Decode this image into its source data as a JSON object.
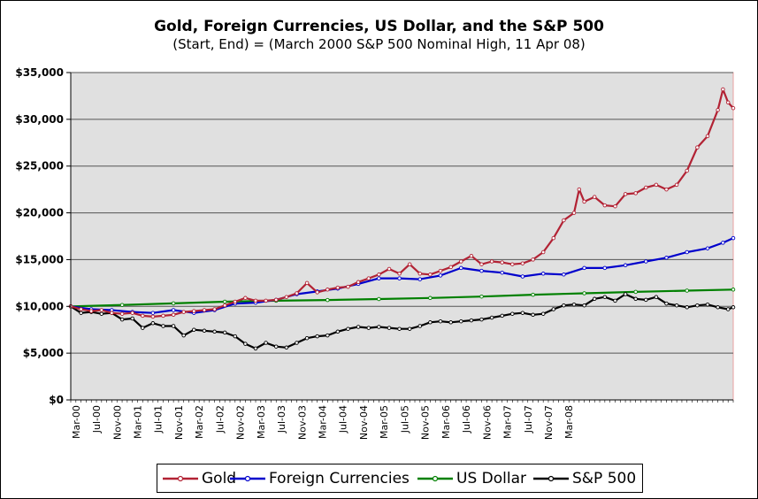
{
  "chart_data": {
    "type": "line",
    "title": "Gold, Foreign Currencies, US Dollar, and the S&P 500",
    "subtitle": "(Start, End) = (March 2000 S&P 500 Nominal High, 11 Apr 08)",
    "xlabel": "",
    "ylabel": "",
    "x_tick_labels": [
      "Mar-00",
      "Jul-00",
      "Nov-00",
      "Mar-01",
      "Jul-01",
      "Nov-01",
      "Mar-02",
      "Jul-02",
      "Nov-02",
      "Mar-03",
      "Jul-03",
      "Nov-03",
      "Mar-04",
      "Jul-04",
      "Nov-04",
      "Mar-05",
      "Jul-05",
      "Nov-05",
      "Mar-06",
      "Jul-06",
      "Nov-06",
      "Mar-07",
      "Jul-07",
      "Nov-07",
      "Mar-08"
    ],
    "y_tick_labels": [
      "$0",
      "$5,000",
      "$10,000",
      "$15,000",
      "$20,000",
      "$25,000",
      "$30,000",
      "$35,000"
    ],
    "ylim": [
      0,
      35000
    ],
    "grid": true,
    "legend_position": "bottom",
    "background_color": "#e0e0e0",
    "series": [
      {
        "name": "Gold",
        "color": "#b22234",
        "points": [
          [
            0,
            10000
          ],
          [
            2,
            9700
          ],
          [
            4,
            9500
          ],
          [
            6,
            9600
          ],
          [
            8,
            9300
          ],
          [
            10,
            9200
          ],
          [
            12,
            9300
          ],
          [
            14,
            9000
          ],
          [
            16,
            8900
          ],
          [
            18,
            9000
          ],
          [
            20,
            9100
          ],
          [
            22,
            9400
          ],
          [
            24,
            9500
          ],
          [
            26,
            9600
          ],
          [
            28,
            9700
          ],
          [
            30,
            10100
          ],
          [
            32,
            10500
          ],
          [
            34,
            10900
          ],
          [
            36,
            10600
          ],
          [
            38,
            10600
          ],
          [
            40,
            10700
          ],
          [
            42,
            11000
          ],
          [
            44,
            11400
          ],
          [
            46,
            12500
          ],
          [
            48,
            11500
          ],
          [
            50,
            11800
          ],
          [
            52,
            12000
          ],
          [
            54,
            12100
          ],
          [
            56,
            12600
          ],
          [
            58,
            13000
          ],
          [
            60,
            13400
          ],
          [
            62,
            14000
          ],
          [
            64,
            13500
          ],
          [
            66,
            14500
          ],
          [
            68,
            13500
          ],
          [
            70,
            13400
          ],
          [
            72,
            13800
          ],
          [
            74,
            14200
          ],
          [
            76,
            14800
          ],
          [
            78,
            15400
          ],
          [
            80,
            14500
          ],
          [
            82,
            14800
          ],
          [
            84,
            14700
          ],
          [
            86,
            14500
          ],
          [
            88,
            14600
          ],
          [
            90,
            15000
          ],
          [
            92,
            15800
          ],
          [
            94,
            17300
          ],
          [
            96,
            19200
          ],
          [
            98,
            20000
          ],
          [
            99,
            22500
          ],
          [
            100,
            21200
          ],
          [
            102,
            21700
          ],
          [
            104,
            20800
          ],
          [
            106,
            20700
          ],
          [
            108,
            22000
          ],
          [
            110,
            22100
          ],
          [
            112,
            22700
          ],
          [
            114,
            23000
          ],
          [
            116,
            22500
          ],
          [
            118,
            23000
          ],
          [
            120,
            24500
          ],
          [
            122,
            27000
          ],
          [
            124,
            28200
          ],
          [
            126,
            31000
          ],
          [
            127,
            33200
          ],
          [
            128,
            31800
          ],
          [
            129,
            31200
          ]
        ]
      },
      {
        "name": "Foreign Currencies",
        "color": "#0000cc",
        "points": [
          [
            0,
            10000
          ],
          [
            4,
            9700
          ],
          [
            8,
            9600
          ],
          [
            12,
            9400
          ],
          [
            16,
            9300
          ],
          [
            20,
            9600
          ],
          [
            24,
            9300
          ],
          [
            28,
            9600
          ],
          [
            32,
            10300
          ],
          [
            36,
            10400
          ],
          [
            40,
            10700
          ],
          [
            44,
            11300
          ],
          [
            48,
            11600
          ],
          [
            52,
            11900
          ],
          [
            56,
            12400
          ],
          [
            60,
            13000
          ],
          [
            64,
            13000
          ],
          [
            68,
            12900
          ],
          [
            72,
            13300
          ],
          [
            76,
            14100
          ],
          [
            80,
            13800
          ],
          [
            84,
            13600
          ],
          [
            88,
            13200
          ],
          [
            92,
            13500
          ],
          [
            96,
            13400
          ],
          [
            100,
            14100
          ],
          [
            104,
            14100
          ],
          [
            108,
            14400
          ],
          [
            112,
            14800
          ],
          [
            116,
            15200
          ],
          [
            120,
            15800
          ],
          [
            124,
            16200
          ],
          [
            127,
            16800
          ],
          [
            129,
            17300
          ]
        ]
      },
      {
        "name": "US Dollar",
        "color": "#008000",
        "points": [
          [
            0,
            10000
          ],
          [
            10,
            10150
          ],
          [
            20,
            10320
          ],
          [
            30,
            10500
          ],
          [
            40,
            10600
          ],
          [
            50,
            10680
          ],
          [
            60,
            10780
          ],
          [
            70,
            10900
          ],
          [
            80,
            11050
          ],
          [
            90,
            11250
          ],
          [
            100,
            11400
          ],
          [
            110,
            11550
          ],
          [
            120,
            11680
          ],
          [
            129,
            11800
          ]
        ]
      },
      {
        "name": "S&P 500",
        "color": "#000000",
        "points": [
          [
            0,
            10000
          ],
          [
            2,
            9300
          ],
          [
            4,
            9400
          ],
          [
            6,
            9200
          ],
          [
            8,
            9300
          ],
          [
            10,
            8600
          ],
          [
            12,
            8700
          ],
          [
            14,
            7700
          ],
          [
            16,
            8200
          ],
          [
            18,
            7900
          ],
          [
            20,
            7900
          ],
          [
            22,
            6900
          ],
          [
            24,
            7500
          ],
          [
            26,
            7400
          ],
          [
            28,
            7300
          ],
          [
            30,
            7200
          ],
          [
            32,
            6800
          ],
          [
            34,
            6000
          ],
          [
            36,
            5500
          ],
          [
            38,
            6100
          ],
          [
            40,
            5700
          ],
          [
            42,
            5600
          ],
          [
            44,
            6100
          ],
          [
            46,
            6600
          ],
          [
            48,
            6800
          ],
          [
            50,
            6900
          ],
          [
            52,
            7300
          ],
          [
            54,
            7600
          ],
          [
            56,
            7800
          ],
          [
            58,
            7700
          ],
          [
            60,
            7800
          ],
          [
            62,
            7700
          ],
          [
            64,
            7600
          ],
          [
            66,
            7600
          ],
          [
            68,
            7900
          ],
          [
            70,
            8300
          ],
          [
            72,
            8400
          ],
          [
            74,
            8300
          ],
          [
            76,
            8400
          ],
          [
            78,
            8500
          ],
          [
            80,
            8600
          ],
          [
            82,
            8800
          ],
          [
            84,
            9000
          ],
          [
            86,
            9200
          ],
          [
            88,
            9300
          ],
          [
            90,
            9100
          ],
          [
            92,
            9200
          ],
          [
            94,
            9700
          ],
          [
            96,
            10100
          ],
          [
            98,
            10200
          ],
          [
            100,
            10100
          ],
          [
            102,
            10800
          ],
          [
            104,
            11000
          ],
          [
            106,
            10600
          ],
          [
            108,
            11300
          ],
          [
            110,
            10800
          ],
          [
            112,
            10700
          ],
          [
            114,
            11000
          ],
          [
            116,
            10300
          ],
          [
            118,
            10100
          ],
          [
            120,
            9900
          ],
          [
            122,
            10100
          ],
          [
            124,
            10200
          ],
          [
            126,
            9900
          ],
          [
            128,
            9700
          ],
          [
            129,
            9900
          ]
        ]
      }
    ]
  }
}
